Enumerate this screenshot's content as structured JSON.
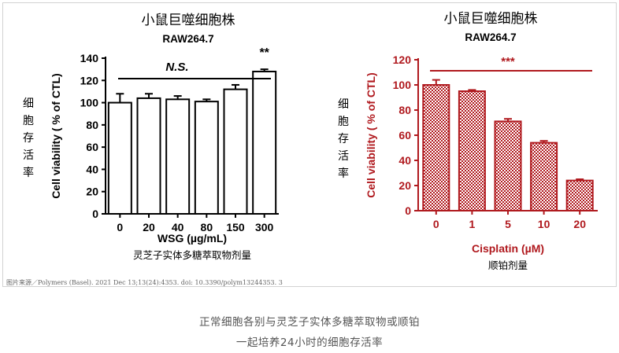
{
  "chart_data": [
    {
      "type": "bar",
      "title": "小鼠巨噬细胞株",
      "subtitle": "RAW264.7",
      "ylabel": "Cell viability ( % of CTL)",
      "ylabel_cn": [
        "细",
        "胞",
        "存",
        "活",
        "率"
      ],
      "xlabel": "WSG (µg/mL)",
      "xlabel_cn": "灵芝子实体多糖萃取物剂量",
      "categories": [
        "0",
        "20",
        "40",
        "80",
        "150",
        "300"
      ],
      "values": [
        100,
        104,
        103,
        101,
        112,
        128
      ],
      "errors": [
        8,
        4,
        3,
        2,
        4,
        2
      ],
      "ylim": [
        0,
        140
      ],
      "yticks": [
        "0",
        "20",
        "40",
        "60",
        "80",
        "100",
        "120",
        "140"
      ],
      "annotations": [
        "N.S.",
        "**"
      ],
      "color": "#000000",
      "fill": "#ffffff",
      "grid": false
    },
    {
      "type": "bar",
      "title": "小鼠巨噬细胞株",
      "subtitle": "RAW264.7",
      "ylabel": "Cell viability ( % of CTL)",
      "ylabel_cn": [
        "细",
        "胞",
        "存",
        "活",
        "率"
      ],
      "xlabel": "Cisplatin (µM)",
      "xlabel_cn": "顺铂剂量",
      "categories": [
        "0",
        "1",
        "5",
        "10",
        "20"
      ],
      "values": [
        100,
        95,
        71,
        54,
        24
      ],
      "errors": [
        4,
        1,
        2,
        1.5,
        1
      ],
      "ylim": [
        0,
        120
      ],
      "yticks": [
        "0",
        "20",
        "40",
        "60",
        "80",
        "100",
        "120"
      ],
      "annotations": [
        "***"
      ],
      "color": "#b0191e",
      "fill": "checkered",
      "grid": false
    }
  ],
  "source_note": "图片来源／Polymers (Basel). 2021 Dec 13;13(24):4353. doi: 10.3390/polym13244353. 3",
  "caption": {
    "line1": "正常细胞各别与灵芝子实体多糖萃取物或顺铂",
    "line2": "一起培养24小时的细胞存活率"
  }
}
